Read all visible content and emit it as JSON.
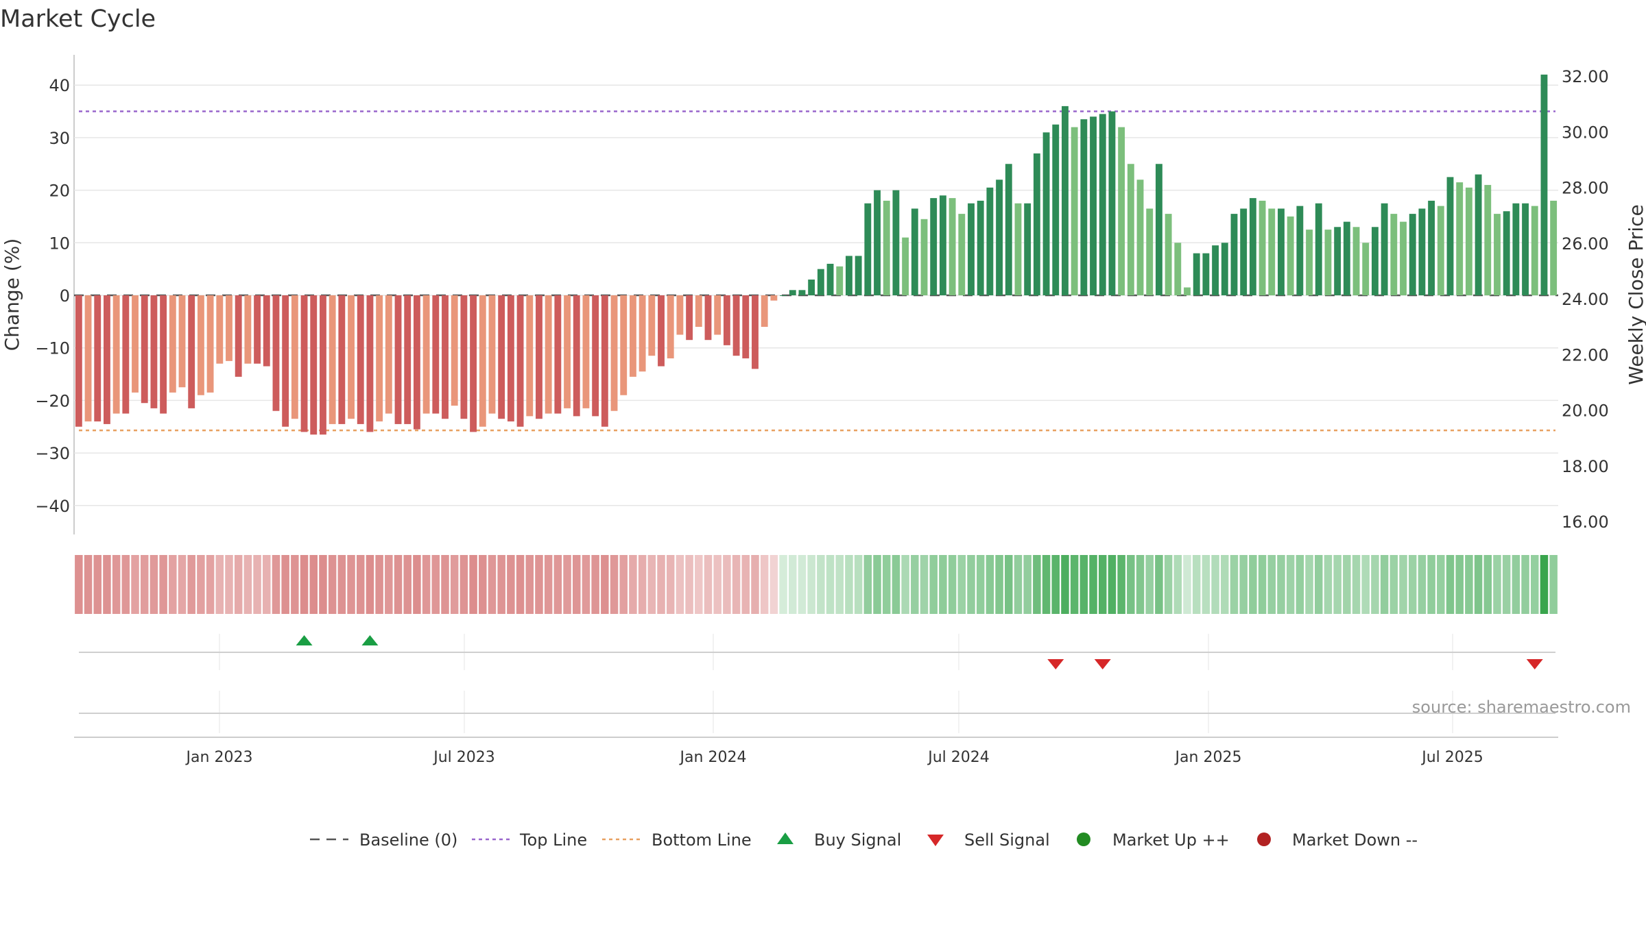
{
  "title": "Market Cycle",
  "source": "source: sharemaestro.com",
  "colors": {
    "dark_red": "#cd5c5c",
    "light_red": "#e9967a",
    "dark_green": "#2e8b57",
    "light_green": "#7cbf7c",
    "top_line": "#9966cc",
    "bottom_line": "#e8a060",
    "baseline": "#555555",
    "buy": "#1a9e44",
    "sell": "#d62728",
    "market_up": "#228b22",
    "market_down": "#b22222"
  },
  "chart_data": {
    "type": "bar",
    "ylabel_left": "Change (%)",
    "ylabel_right": "Weekly Close Price",
    "ylim_left": [
      -45,
      45
    ],
    "ylim_right": [
      15.6,
      32.8
    ],
    "yticks_left": [
      40,
      30,
      20,
      10,
      0,
      -10,
      -20,
      -30,
      -40
    ],
    "yticks_left_labels": [
      "40",
      "30",
      "20",
      "10",
      "0",
      "−10",
      "−20",
      "−30",
      "−40"
    ],
    "yticks_right": [
      32,
      30,
      28,
      26,
      24,
      22,
      20,
      18,
      16
    ],
    "yticks_right_labels": [
      "32.00",
      "30.00",
      "28.00",
      "26.00",
      "24.00",
      "22.00",
      "20.00",
      "18.00",
      "16.00"
    ],
    "xticks": [
      "Jan 2023",
      "Jul 2023",
      "Jan 2024",
      "Jul 2024",
      "Jan 2025",
      "Jul 2025"
    ],
    "top_line": 35,
    "bottom_line": -25.7,
    "baseline": 0,
    "weeks": 158,
    "values": [
      -25,
      -24,
      -24,
      -24.5,
      -22.5,
      -22.5,
      -18.5,
      -20.5,
      -21.5,
      -22.5,
      -18.5,
      -17.5,
      -21.5,
      -19,
      -18.5,
      -13,
      -12.5,
      -15.5,
      -13,
      -13,
      -13.5,
      -22,
      -25,
      -23.5,
      -26,
      -26.5,
      -26.5,
      -24.5,
      -24.5,
      -23.5,
      -24.5,
      -26,
      -24,
      -22.5,
      -24.5,
      -24.5,
      -25.5,
      -22.5,
      -22.5,
      -23.5,
      -21,
      -23.5,
      -26,
      -25,
      -22.5,
      -23.5,
      -24,
      -25,
      -23,
      -23.5,
      -22.5,
      -22.5,
      -21.5,
      -23,
      -21.5,
      -23,
      -25,
      -22,
      -19,
      -15.5,
      -14.5,
      -11.5,
      -13.5,
      -12,
      -7.5,
      -8.5,
      -6,
      -8.5,
      -7.5,
      -9.5,
      -11.5,
      -12,
      -14,
      -6,
      -1,
      0,
      1,
      1,
      3,
      5,
      6,
      5.5,
      7.5,
      7.5,
      17.5,
      20,
      18,
      20,
      11,
      16.5,
      14.5,
      18.5,
      19,
      18.5,
      15.5,
      17.5,
      18,
      20.5,
      22,
      25,
      17.5,
      17.5,
      27,
      31,
      32.5,
      36,
      32,
      33.5,
      34,
      34.5,
      35,
      32,
      25,
      22,
      16.5,
      25,
      15.5,
      10,
      1.5,
      8,
      8,
      9.5,
      10,
      15.5,
      16.5,
      18.5,
      18,
      16.5,
      16.5,
      15,
      17,
      12.5,
      17.5,
      12.5,
      13,
      14,
      13,
      10,
      13,
      17.5,
      15.5,
      14,
      15.5,
      16.5,
      18,
      17,
      22.5,
      21.5,
      20.5,
      23,
      21,
      15.5,
      16,
      17.5,
      17.5,
      17,
      42,
      18
    ],
    "buy_signals": [
      24,
      31
    ],
    "sell_signals": [
      104,
      109,
      155
    ],
    "source": "sharemaestro.com"
  },
  "legend": [
    {
      "label": "Baseline (0)",
      "icon": "dash-line-icon",
      "color": "#555555"
    },
    {
      "label": "Top Line",
      "icon": "dotted-line-icon",
      "color": "#9966cc"
    },
    {
      "label": "Bottom Line",
      "icon": "dotted-line-icon",
      "color": "#e8a060"
    },
    {
      "label": "Buy Signal",
      "icon": "triangle-up-icon",
      "color": "#1a9e44"
    },
    {
      "label": "Sell Signal",
      "icon": "triangle-down-icon",
      "color": "#d62728"
    },
    {
      "label": "Market Up ++",
      "icon": "circle-icon",
      "color": "#228b22"
    },
    {
      "label": "Market Down --",
      "icon": "circle-icon",
      "color": "#b22222"
    }
  ]
}
